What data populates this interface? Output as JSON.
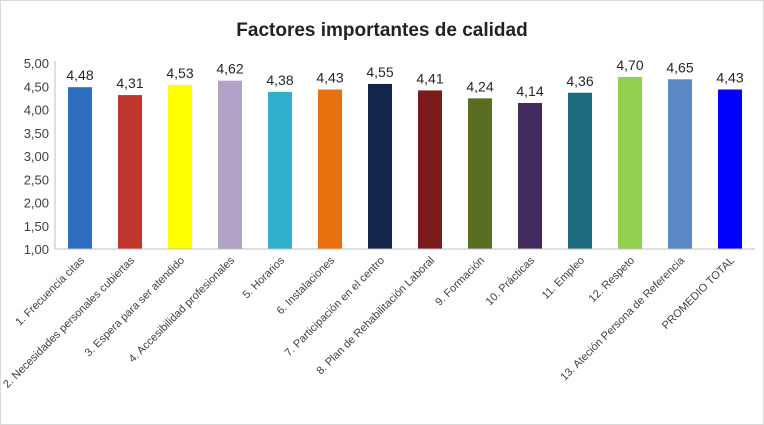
{
  "chart_data": {
    "type": "bar",
    "title": "Factores importantes de calidad",
    "xlabel": "",
    "ylabel": "",
    "ylim": [
      1,
      5
    ],
    "yticks": [
      "1,00",
      "1,50",
      "2,00",
      "2,50",
      "3,00",
      "3,50",
      "4,00",
      "4,50",
      "5,00"
    ],
    "grid": false,
    "legend": "none",
    "categories": [
      "1. Frecuencia citas",
      "2. Necesidades personales cubiertas",
      "3. Espera para ser atendido",
      "4. Accesibilidad profesionales",
      "5. Horarios",
      "6. Instalaciones",
      "7. Participación en el centro",
      "8. Plan de Rehabilitación Laboral",
      "9. Formación",
      "10. Prácticas",
      "11. Empleo",
      "12. Respeto",
      "13. Ateción Persona de Referencia",
      "PROMEDIO TOTAL"
    ],
    "values": [
      4.48,
      4.31,
      4.53,
      4.62,
      4.38,
      4.43,
      4.55,
      4.41,
      4.24,
      4.14,
      4.36,
      4.7,
      4.65,
      4.43
    ],
    "value_labels": [
      "4,48",
      "4,31",
      "4,53",
      "4,62",
      "4,38",
      "4,43",
      "4,55",
      "4,41",
      "4,24",
      "4,14",
      "4,36",
      "4,70",
      "4,65",
      "4,43"
    ],
    "colors": [
      "#2e6fbf",
      "#c0362f",
      "#ffff00",
      "#b3a2c7",
      "#31b0cc",
      "#e8700e",
      "#12254a",
      "#7a1c1c",
      "#5a6e23",
      "#432a5e",
      "#1e6b80",
      "#92d050",
      "#5b8ac7",
      "#0000ff"
    ]
  }
}
